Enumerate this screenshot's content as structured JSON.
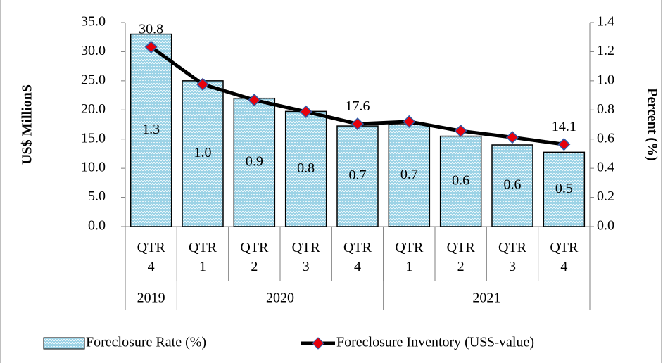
{
  "chart_data": {
    "type": "bar-line",
    "categories": [
      "QTR 4",
      "QTR 1",
      "QTR 2",
      "QTR 3",
      "QTR 4",
      "QTR 1",
      "QTR 2",
      "QTR 3",
      "QTR 4"
    ],
    "category_groups": [
      {
        "label": "2019",
        "span": 1
      },
      {
        "label": "2020",
        "span": 4
      },
      {
        "label": "2021",
        "span": 4
      }
    ],
    "series": [
      {
        "name": "Foreclosure Rate (%)",
        "type": "bar",
        "axis": "y2",
        "color": "#9dd3e6",
        "values": [
          1.32,
          1.0,
          0.88,
          0.79,
          0.69,
          0.7,
          0.62,
          0.56,
          0.51
        ],
        "value_labels": [
          "1.3",
          "1.0",
          "0.9",
          "0.8",
          "0.7",
          "0.7",
          "0.6",
          "0.6",
          "0.5"
        ]
      },
      {
        "name": "Foreclosure Inventory (US$-value)",
        "type": "line",
        "axis": "y",
        "color": "#000000",
        "marker_color": "#e8000b",
        "values": [
          30.8,
          24.4,
          21.7,
          19.7,
          17.6,
          18.0,
          16.4,
          15.3,
          14.1
        ],
        "value_labels": [
          "30.8",
          null,
          null,
          null,
          "17.6",
          null,
          null,
          null,
          "14.1"
        ]
      }
    ],
    "ylabel": "US$ MillionS",
    "y2label": "Percent (%)",
    "ylim": [
      0,
      35
    ],
    "yticks": [
      {
        "value": 0,
        "label": "0.0"
      },
      {
        "value": 5,
        "label": "5.0"
      },
      {
        "value": 10,
        "label": "10.0"
      },
      {
        "value": 15,
        "label": "15.0"
      },
      {
        "value": 20,
        "label": "20.0"
      },
      {
        "value": 25,
        "label": "25.0"
      },
      {
        "value": 30,
        "label": "30.0"
      },
      {
        "value": 35,
        "label": "35.0"
      }
    ],
    "y2lim": [
      0,
      1.4
    ],
    "y2ticks": [
      {
        "value": 0,
        "label": "0.0"
      },
      {
        "value": 0.2,
        "label": "0.2"
      },
      {
        "value": 0.4,
        "label": "0.4"
      },
      {
        "value": 0.6,
        "label": "0.6"
      },
      {
        "value": 0.8,
        "label": "0.8"
      },
      {
        "value": 1.0,
        "label": "1.0"
      },
      {
        "value": 1.2,
        "label": "1.2"
      },
      {
        "value": 1.4,
        "label": "1.4"
      }
    ],
    "grid": false,
    "legend": "bottom"
  }
}
